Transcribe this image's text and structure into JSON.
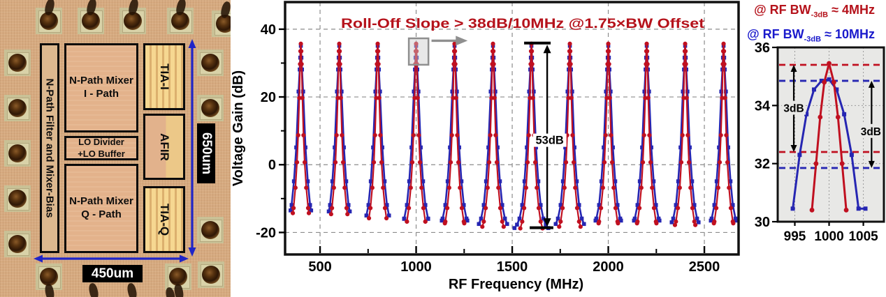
{
  "chip": {
    "filter_block": "N-Path Filter and Mixer-Bias",
    "mixer_i_line1": "N-Path Mixer",
    "mixer_i_line2": "I - Path",
    "lo_line1": "LO Divider",
    "lo_line2": "+LO Buffer",
    "mixer_q_line1": "N-Path Mixer",
    "mixer_q_line2": "Q - Path",
    "tia_i": "TIA-I",
    "afir": "AFIR",
    "tia_q": "TIA-Q",
    "dim_height": "650um",
    "dim_width": "450um"
  },
  "legend": {
    "items": [
      {
        "prefix": "@ RF BW",
        "sub": "-3dB",
        "suffix": " ≈ 4MHz",
        "color": "#b5121b"
      },
      {
        "prefix": "@ RF BW",
        "sub": "-3dB",
        "suffix": " ≈ 10MHz",
        "color": "#1a1acc"
      }
    ]
  },
  "chart_data": [
    {
      "type": "line",
      "title": "",
      "xlabel": "RF Frequency (MHz)",
      "ylabel": "Voltage Gain (dB)",
      "xlim": [
        318,
        2678
      ],
      "ylim": [
        -26.5,
        48
      ],
      "x_ticks": [
        500,
        1000,
        1500,
        2000,
        2500
      ],
      "x_minor_ticks": [
        750,
        1250,
        1750,
        2250
      ],
      "y_ticks": [
        40,
        20,
        0,
        -20
      ],
      "y_minor_ticks": [
        30,
        10,
        -10
      ],
      "grid": "dashed",
      "grid_color": "#8c8c8c",
      "annotation_rolloff": "Roll-Off Slope > 38dB/10MHz @1.75×BW Offset",
      "annotation_rolloff_color": "#b5121b",
      "annotation_span": {
        "label": "53dB",
        "arrow_x_MHz": 1682,
        "top_dB": 35.4,
        "bottom_dB": -18.3,
        "top_bar": {
          "dB": 35.9,
          "f1": 1562,
          "f2": 1700
        },
        "bottom_bar": {
          "dB": -18.6,
          "f1": 1591,
          "f2": 1714
        },
        "label_f": 1695,
        "label_dB": 6.3
      },
      "zoom_box": {
        "f1": 962,
        "f2": 1064,
        "g1": 29.5,
        "g2": 37.3,
        "arrow_f1": 1080,
        "arrow_f2": 1268,
        "arrow_dB": 36.6,
        "color": "#8f8f8f"
      },
      "peak_centers": [
        400,
        600,
        800,
        1000,
        1200,
        1400,
        1600,
        1800,
        2000,
        2200,
        2400,
        2600
      ],
      "peak_floor_dB": [
        -13.5,
        -13.8,
        -15.0,
        -16.0,
        -16.5,
        -17.5,
        -18.7,
        -17.5,
        -16.5,
        -16.5,
        -17.0,
        -16.5
      ],
      "series": [
        {
          "name": "RF BW-3dB ≈ 4MHz",
          "color": "#c01020",
          "marker": "circle",
          "marker_size": 3.1,
          "line_width": 2.2,
          "peak_dB": 35.7,
          "floor_delta": -0.8,
          "rolloff_profile": [
            [
              0,
              0
            ],
            [
              2,
              2.2
            ],
            [
              4,
              6
            ],
            [
              8,
              16
            ],
            [
              14,
              27
            ],
            [
              20,
              35
            ],
            [
              28,
              42.5
            ],
            [
              38,
              48.5
            ],
            [
              48,
              52.5
            ],
            [
              58,
              54.5
            ]
          ]
        },
        {
          "name": "RF BW-3dB ≈ 10MHz",
          "color": "#2626b2",
          "marker": "square",
          "marker_size": 5.6,
          "line_width": 2.6,
          "peak_dB": 35.1,
          "floor_delta": 0,
          "rolloff_profile": [
            [
              0,
              0
            ],
            [
              3,
              3.5
            ],
            [
              6,
              7
            ],
            [
              12,
              13.5
            ],
            [
              24,
              30
            ],
            [
              36,
              40
            ],
            [
              48,
              47
            ],
            [
              62,
              51
            ],
            [
              75,
              52.8
            ],
            [
              88,
              53.8
            ]
          ]
        }
      ]
    },
    {
      "type": "line",
      "xlabel": "",
      "ylabel": "",
      "xlim": [
        992.5,
        1008
      ],
      "ylim": [
        30,
        36
      ],
      "x_ticks": [
        995,
        1000,
        1005
      ],
      "y_ticks": [
        36,
        34,
        32,
        30
      ],
      "grid_y": [
        34,
        32
      ],
      "grid": "dotted",
      "grid_color": "#9a9a9a",
      "bg": "#e8e8e6",
      "dashed_levels": [
        {
          "color": "#c01020",
          "values": [
            35.4,
            32.4
          ]
        },
        {
          "color": "#2626b2",
          "values": [
            34.85,
            31.85
          ]
        }
      ],
      "arrows": [
        {
          "label": "3dB",
          "x_MHz": 994.85,
          "from_dB": 35.4,
          "to_dB": 32.4,
          "label_f": 994.85,
          "label_dB": 33.9
        },
        {
          "label": "3dB",
          "x_MHz": 1006.2,
          "from_dB": 34.85,
          "to_dB": 31.85,
          "label_f": 1006.1,
          "label_dB": 33.1
        }
      ],
      "series": [
        {
          "name": "RF BW-3dB ≈ 4MHz",
          "color": "#c01020",
          "marker": "circle",
          "marker_size": 3.4,
          "line_width": 3,
          "points": [
            [
              997.5,
              30.4
            ],
            [
              998.1,
              32.0
            ],
            [
              998.7,
              33.6
            ],
            [
              999.3,
              34.8
            ],
            [
              1000,
              35.45
            ],
            [
              1000.7,
              34.8
            ],
            [
              1001.3,
              33.6
            ],
            [
              1001.9,
              32.0
            ],
            [
              1002.5,
              30.4
            ]
          ]
        },
        {
          "name": "RF BW-3dB ≈ 10MHz",
          "color": "#2626b2",
          "marker": "square",
          "marker_size": 6,
          "line_width": 3,
          "points": [
            [
              994.7,
              30.45
            ],
            [
              995.7,
              32.3
            ],
            [
              996.7,
              33.7
            ],
            [
              997.8,
              34.55
            ],
            [
              998.9,
              34.85
            ],
            [
              1000,
              34.9
            ],
            [
              1001.1,
              34.55
            ],
            [
              1002.2,
              33.7
            ],
            [
              1003.3,
              32.3
            ],
            [
              1004.3,
              30.45
            ],
            [
              1005.3,
              30.45
            ]
          ]
        }
      ]
    }
  ]
}
